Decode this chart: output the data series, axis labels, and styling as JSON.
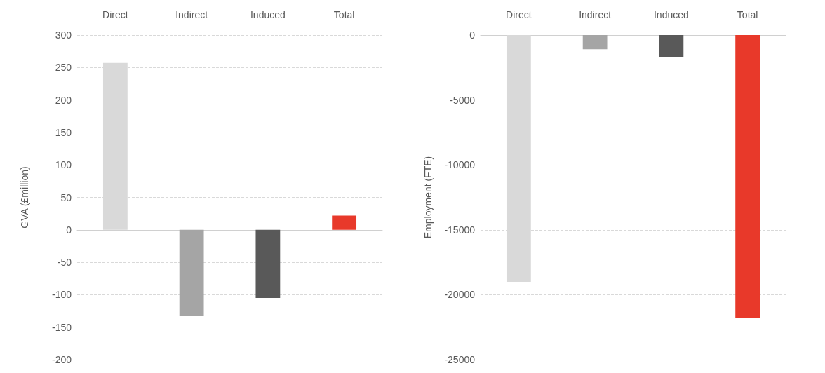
{
  "chart_data": [
    {
      "type": "bar",
      "ylabel": "GVA (£million)",
      "categories": [
        "Direct",
        "Indirect",
        "Induced",
        "Total"
      ],
      "values": [
        257,
        -132,
        -105,
        22
      ],
      "colors": [
        "#d9d9d9",
        "#a5a5a5",
        "#595959",
        "#e8392a"
      ],
      "ylim": [
        -200,
        300
      ],
      "yticks": [
        -200,
        -150,
        -100,
        -50,
        0,
        50,
        100,
        150,
        200,
        250,
        300
      ],
      "grid": "y"
    },
    {
      "type": "bar",
      "ylabel": "Employment (FTE)",
      "categories": [
        "Direct",
        "Indirect",
        "Induced",
        "Total"
      ],
      "values": [
        -19000,
        -1100,
        -1700,
        -21800
      ],
      "colors": [
        "#d9d9d9",
        "#a5a5a5",
        "#595959",
        "#e8392a"
      ],
      "ylim": [
        -25000,
        0
      ],
      "yticks": [
        -25000,
        -20000,
        -15000,
        -10000,
        -5000,
        0
      ],
      "grid": "y"
    }
  ]
}
